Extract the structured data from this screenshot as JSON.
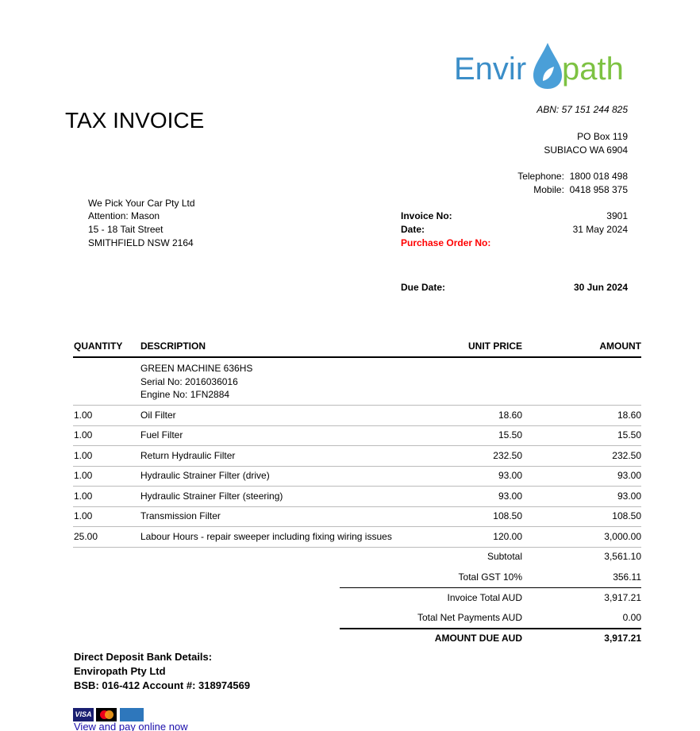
{
  "logo": {
    "text_left": "Envir",
    "text_right": "path",
    "color_blue": "#3b8ec8",
    "color_green": "#7dc242"
  },
  "title": "TAX INVOICE",
  "company": {
    "abn": "ABN: 57 151 244 825",
    "address1": "PO Box 119",
    "address2": "SUBIACO WA 6904",
    "telephone_label": "Telephone:",
    "telephone": "1800 018 498",
    "mobile_label": "Mobile:",
    "mobile": "0418 958 375"
  },
  "customer": {
    "name": "We Pick Your Car Pty Ltd",
    "attention": "Attention: Mason",
    "street": "15 - 18 Tait Street",
    "city": "SMITHFIELD NSW 2164"
  },
  "meta": {
    "invoice_no_label": "Invoice No:",
    "invoice_no": "3901",
    "date_label": "Date:",
    "date": "31 May 2024",
    "po_label": "Purchase Order No:",
    "po_color": "#ff0000",
    "due_label": "Due Date:",
    "due": "30 Jun 2024"
  },
  "table": {
    "headers": {
      "quantity": "QUANTITY",
      "description": "DESCRIPTION",
      "unit_price": "UNIT PRICE",
      "amount": "AMOUNT"
    },
    "intro": [
      "GREEN MACHINE 636HS",
      "Serial No:  2016036016",
      "Engine No:  1FN2884"
    ],
    "rows": [
      {
        "qty": "1.00",
        "desc": "Oil Filter",
        "unit": "18.60",
        "amount": "18.60"
      },
      {
        "qty": "1.00",
        "desc": "Fuel Filter",
        "unit": "15.50",
        "amount": "15.50"
      },
      {
        "qty": "1.00",
        "desc": "Return Hydraulic Filter",
        "unit": "232.50",
        "amount": "232.50"
      },
      {
        "qty": "1.00",
        "desc": "Hydraulic Strainer Filter (drive)",
        "unit": "93.00",
        "amount": "93.00"
      },
      {
        "qty": "1.00",
        "desc": "Hydraulic Strainer Filter (steering)",
        "unit": "93.00",
        "amount": "93.00"
      },
      {
        "qty": "1.00",
        "desc": "Transmission Filter",
        "unit": "108.50",
        "amount": "108.50"
      },
      {
        "qty": "25.00",
        "desc": "Labour Hours - repair sweeper including fixing wiring issues",
        "unit": "120.00",
        "amount": "3,000.00"
      }
    ]
  },
  "totals": [
    {
      "label": "Subtotal",
      "value": "3,561.10"
    },
    {
      "label": "Total GST 10%",
      "value": "356.11"
    },
    {
      "label": "Invoice Total AUD",
      "value": "3,917.21"
    },
    {
      "label": "Total Net Payments AUD",
      "value": "0.00"
    },
    {
      "label": "AMOUNT DUE AUD",
      "value": "3,917.21"
    }
  ],
  "bank": {
    "heading": "Direct Deposit Bank Details:",
    "name": "Enviropath Pty Ltd",
    "account": "BSB: 016-412  Account #: 318974569"
  },
  "payment": {
    "visa": "VISA",
    "link": "View and pay online now",
    "link_color": "#1a0dab"
  }
}
